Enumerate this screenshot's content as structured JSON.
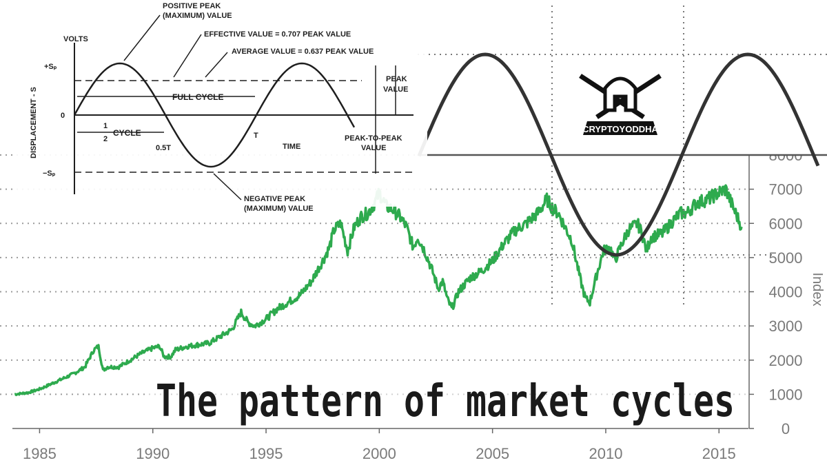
{
  "colors": {
    "index_line": "#2eaa4e",
    "cycle_line": "#333333",
    "grid": "#9a9a9a",
    "axis_text": "#7a7a7a",
    "title": "#1a1a1a"
  },
  "main_chart": {
    "type": "line",
    "title": "The pattern of market cycles",
    "ylabel": "Index",
    "xlim": [
      1983.8,
      2016.3
    ],
    "ylim": [
      0,
      8000
    ],
    "y_ticks": [
      "0",
      "1000",
      "2000",
      "3000",
      "4000",
      "5000",
      "6000",
      "7000",
      "8000"
    ],
    "x_ticks": [
      "1985",
      "1990",
      "1995",
      "2000",
      "2005",
      "2010",
      "2015"
    ],
    "grid": true,
    "grid_style": "dotted"
  },
  "chart_data": {
    "type": "line",
    "title": "The pattern of market cycles",
    "xlabel": "",
    "ylabel": "Index",
    "ylim": [
      0,
      8000
    ],
    "xlim": [
      1983.8,
      2016.3
    ],
    "series": [
      {
        "name": "",
        "x": [
          1983.9,
          1984.5,
          1985.0,
          1985.5,
          1986.0,
          1986.5,
          1987.0,
          1987.4,
          1987.6,
          1987.8,
          1988.0,
          1988.5,
          1989.0,
          1989.5,
          1990.0,
          1990.3,
          1990.5,
          1990.8,
          1991.0,
          1991.5,
          1992.0,
          1992.5,
          1993.0,
          1993.5,
          1993.9,
          1994.2,
          1994.5,
          1995.0,
          1995.5,
          1996.0,
          1996.5,
          1997.0,
          1997.5,
          1997.8,
          1998.0,
          1998.3,
          1998.6,
          1998.9,
          1999.2,
          1999.5,
          1999.8,
          2000.0,
          2000.3,
          2000.6,
          2000.9,
          2001.2,
          2001.5,
          2001.7,
          2002.0,
          2002.3,
          2002.6,
          2002.8,
          2003.0,
          2003.2,
          2003.5,
          2004.0,
          2004.5,
          2005.0,
          2005.5,
          2006.0,
          2006.5,
          2007.0,
          2007.4,
          2007.7,
          2007.9,
          2008.2,
          2008.5,
          2008.7,
          2008.9,
          2009.1,
          2009.3,
          2009.6,
          2009.9,
          2010.2,
          2010.4,
          2010.7,
          2011.0,
          2011.4,
          2011.6,
          2011.8,
          2012.0,
          2012.5,
          2013.0,
          2013.3,
          2013.6,
          2014.0,
          2014.5,
          2015.0,
          2015.3,
          2015.6,
          2015.8,
          2016.0
        ],
        "y": [
          1000,
          1050,
          1150,
          1300,
          1450,
          1600,
          1800,
          2300,
          2400,
          1700,
          1800,
          1800,
          2000,
          2200,
          2350,
          2400,
          2100,
          2100,
          2300,
          2400,
          2450,
          2500,
          2700,
          2900,
          3400,
          3100,
          3000,
          3200,
          3500,
          3700,
          3900,
          4300,
          4900,
          5300,
          5800,
          6000,
          5200,
          5900,
          6200,
          6300,
          6600,
          6900,
          6500,
          6400,
          6200,
          5900,
          5300,
          5600,
          5200,
          4700,
          4100,
          4300,
          3800,
          3500,
          4000,
          4400,
          4600,
          4900,
          5400,
          5800,
          6000,
          6300,
          6700,
          6400,
          6300,
          5900,
          5500,
          4900,
          4300,
          3800,
          3700,
          4500,
          5200,
          5300,
          4900,
          5400,
          5800,
          6000,
          5700,
          5200,
          5600,
          5700,
          6100,
          6300,
          6300,
          6600,
          6700,
          6900,
          7000,
          6500,
          6200,
          5900
        ]
      }
    ]
  },
  "cycle_overlay": {
    "type": "line",
    "description_none": "",
    "watermark_text": "CRYPTOYODDHA"
  },
  "inset_diagram": {
    "y_axis_label": "VOLTS",
    "y_axis_side_label": "DISPLACEMENT - S",
    "top_left_label": "+Sₚ",
    "zero_label": "0",
    "neg_label": "−Sₚ",
    "positive_peak": [
      "POSITIVE PEAK",
      "(MAXIMUM) VALUE"
    ],
    "effective_value": "EFFECTIVE VALUE = 0.707 PEAK VALUE",
    "average_value": "AVERAGE VALUE = 0.637 PEAK VALUE",
    "full_cycle": "FULL CYCLE",
    "half_cycle_num": "1",
    "half_cycle_den": "2",
    "half_cycle_word": "CYCLE",
    "point_5t": "0.5T",
    "t_label": "T",
    "time_label": "TIME",
    "peak_value": [
      "PEAK",
      "VALUE"
    ],
    "peak_to_peak": [
      "PEAK-TO-PEAK",
      "VALUE"
    ],
    "negative_peak": [
      "NEGATIVE PEAK",
      "(MAXIMUM) VALUE"
    ]
  }
}
